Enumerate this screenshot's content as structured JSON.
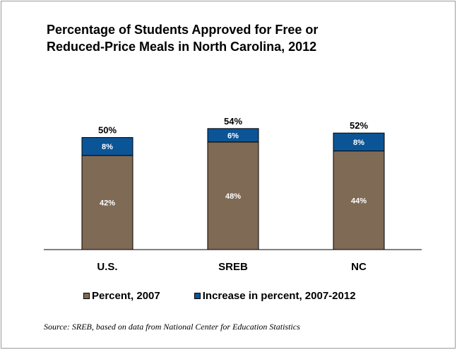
{
  "chart_data": {
    "type": "bar",
    "stacked": true,
    "title_lines": [
      "Percentage of Students Approved for Free or",
      "Reduced-Price Meals in North Carolina, 2012"
    ],
    "categories": [
      "U.S.",
      "SREB",
      "NC"
    ],
    "series": [
      {
        "name": "Percent, 2007",
        "values": [
          42,
          48,
          44
        ],
        "labels": [
          "42%",
          "48%",
          "44%"
        ],
        "color": "#7f6a55"
      },
      {
        "name": "Increase in percent, 2007-2012",
        "values": [
          8,
          6,
          8
        ],
        "labels": [
          "8%",
          "6%",
          "8%"
        ],
        "color": "#0b5596"
      }
    ],
    "totals": [
      50,
      54,
      52
    ],
    "total_labels": [
      "50%",
      "54%",
      "52%"
    ],
    "ylim": [
      0,
      54
    ],
    "grid": false,
    "legend_position": "bottom"
  },
  "source": "Source: SREB, based on data from National Center for Education Statistics"
}
